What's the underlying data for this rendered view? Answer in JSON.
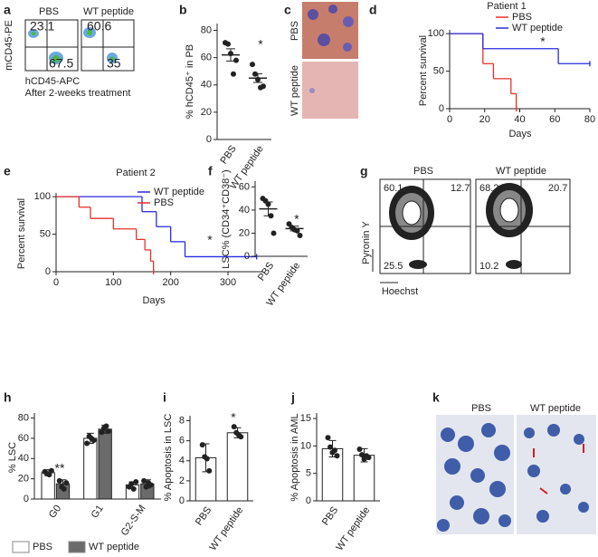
{
  "panel_a": {
    "letter": "a",
    "titles": [
      "PBS",
      "WT peptide"
    ],
    "quadrants": [
      [
        "23.1",
        "67.5"
      ],
      [
        "60.6",
        "35"
      ]
    ],
    "y_label": "mCD45-PE",
    "x_label": "hCD45-APC",
    "caption": "After 2-weeks treatment"
  },
  "panel_c": {
    "letter": "c",
    "labels": [
      "PBS",
      "WT peptide"
    ]
  },
  "panel_g": {
    "letter": "g",
    "titles": [
      "PBS",
      "WT peptide"
    ],
    "quadrants": [
      [
        "60.1",
        "12.7",
        "25.5"
      ],
      [
        "68.2",
        "20.7",
        "10.2"
      ]
    ],
    "y_label": "Pyronin Y",
    "x_label": "Hoechst"
  },
  "panel_k": {
    "letter": "k",
    "titles": [
      "PBS",
      "WT peptide"
    ]
  },
  "chart_data": [
    {
      "type": "dot",
      "panel": "b",
      "ylabel": "% hCD45⁺ in PB",
      "categories": [
        "PBS",
        "WT peptide"
      ],
      "points": [
        [
          71,
          70,
          63,
          48,
          58
        ],
        [
          55,
          48,
          44,
          38,
          39
        ]
      ],
      "means": [
        62,
        45
      ],
      "errors": [
        4.5,
        3.2
      ],
      "ylim": [
        0,
        85
      ],
      "yticks": [
        0,
        20,
        40,
        60,
        80
      ],
      "annotation": "*"
    },
    {
      "type": "line",
      "panel": "d",
      "title": "Patient 1",
      "xlabel": "Days",
      "ylabel": "Percent survival",
      "step": true,
      "series": [
        {
          "name": "PBS",
          "color": "#e8312a",
          "x": [
            0,
            19,
            25,
            35,
            38
          ],
          "values": [
            100,
            60,
            40,
            20,
            0
          ]
        },
        {
          "name": "WT peptide",
          "color": "#2a2ae0",
          "x": [
            0,
            19,
            62,
            80
          ],
          "values": [
            100,
            80,
            60,
            60
          ]
        }
      ],
      "xlim": [
        0,
        80
      ],
      "xticks": [
        0,
        20,
        40,
        60,
        80
      ],
      "ylim": [
        0,
        105
      ],
      "yticks": [
        0,
        50,
        100
      ],
      "annotation": "*"
    },
    {
      "type": "line",
      "panel": "e",
      "title": "Patient 2",
      "xlabel": "Days",
      "ylabel": "Percent survival",
      "step": true,
      "series": [
        {
          "name": "WT peptide",
          "color": "#2a2ae0",
          "x": [
            0,
            150,
            175,
            200,
            225,
            350
          ],
          "values": [
            100,
            80,
            60,
            40,
            20,
            20
          ]
        },
        {
          "name": "PBS",
          "color": "#e8312a",
          "x": [
            0,
            40,
            60,
            100,
            140,
            155,
            165,
            170
          ],
          "values": [
            100,
            86,
            71,
            57,
            43,
            29,
            14,
            0
          ]
        }
      ],
      "xlim": [
        0,
        360
      ],
      "xticks": [
        0,
        100,
        200,
        300
      ],
      "ylim": [
        0,
        105
      ],
      "yticks": [
        0,
        50,
        100
      ],
      "annotation": "*"
    },
    {
      "type": "dot",
      "panel": "f",
      "ylabel": "LSC% (CD34⁺CD38⁻)",
      "categories": [
        "PBS",
        "WT peptide"
      ],
      "points": [
        [
          50,
          48,
          45,
          35,
          20
        ],
        [
          28,
          25,
          23,
          22,
          18
        ]
      ],
      "means": [
        41,
        24
      ],
      "errors": [
        6,
        2
      ],
      "ylim": [
        0,
        65
      ],
      "yticks": [
        0,
        20,
        40,
        60
      ],
      "annotation": "*"
    },
    {
      "type": "bar",
      "panel": "h",
      "ylabel": "% LSC",
      "categories": [
        "G0",
        "G1",
        "G2-S-M"
      ],
      "series": [
        {
          "name": "PBS",
          "color": "#ffffff",
          "values": [
            26,
            60,
            14
          ],
          "errors": [
            3,
            5,
            3
          ],
          "points": [
            [
              27,
              25,
              24,
              28
            ],
            [
              55,
              62,
              60,
              58
            ],
            [
              12,
              15,
              10,
              17
            ]
          ]
        },
        {
          "name": "WT peptide",
          "color": "#6b6b6b",
          "values": [
            15,
            69,
            15
          ],
          "errors": [
            4,
            4,
            4
          ],
          "points": [
            [
              18,
              12,
              10,
              16
            ],
            [
              66,
              70,
              72,
              67
            ],
            [
              18,
              12,
              16,
              14
            ]
          ]
        }
      ],
      "ylim": [
        0,
        85
      ],
      "yticks": [
        0,
        20,
        40,
        60,
        80
      ],
      "annotation": "**"
    },
    {
      "type": "bar",
      "panel": "i",
      "ylabel": "% Apoptosis in LSC",
      "categories": [
        "PBS",
        "WT peptide"
      ],
      "color": "#ffffff",
      "values": [
        4.3,
        6.8
      ],
      "errors": [
        1.4,
        0.5
      ],
      "points": [
        [
          5.6,
          4.4,
          4.2,
          3.0
        ],
        [
          7.4,
          6.8,
          6.6,
          6.4
        ]
      ],
      "ylim": [
        0,
        8.5
      ],
      "yticks": [
        0,
        2,
        4,
        6,
        8
      ],
      "annotation": "*"
    },
    {
      "type": "bar",
      "panel": "j",
      "ylabel": "% Apoptosis in AML",
      "categories": [
        "PBS",
        "WT peptide"
      ],
      "color": "#ffffff",
      "values": [
        9.5,
        8.3
      ],
      "errors": [
        1.5,
        1.2
      ],
      "points": [
        [
          11.5,
          9.8,
          8.8,
          9.2,
          8.2
        ],
        [
          9.4,
          8.4,
          7.6,
          8.2,
          7.9
        ]
      ],
      "ylim": [
        0,
        16
      ],
      "yticks": [
        0,
        5,
        10,
        15
      ]
    }
  ]
}
